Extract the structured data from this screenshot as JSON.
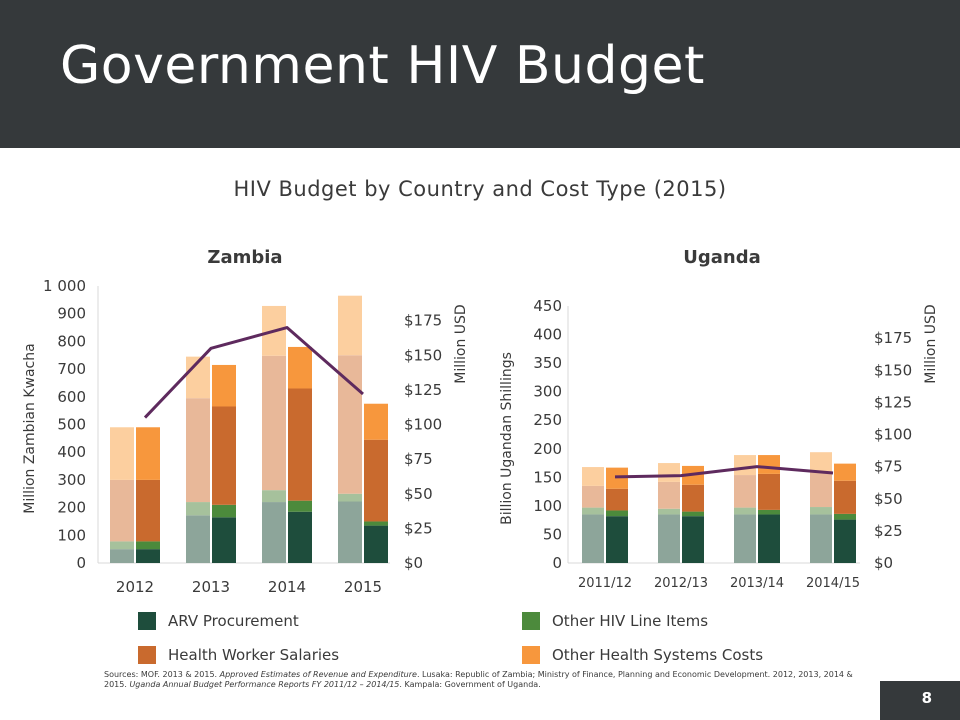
{
  "slide": {
    "title": "Government HIV Budget",
    "subtitle": "HIV Budget by Country and Cost Type (2015)",
    "page_number": "8",
    "sources": {
      "p1": "Sources: MOF. 2013 & 2015. ",
      "p2": "Approved Estimates of Revenue and Expenditure",
      "p3": ". Lusaka: Republic of Zambia; Ministry of Finance, Planning and Economic Development. 2012, 2013, 2014 & 2015. ",
      "p4": "Uganda Annual Budget Performance Reports FY 2011/12 – 2014/15",
      "p5": ". Kampala: Government of Uganda."
    }
  },
  "legend": [
    {
      "label": "ARV Procurement",
      "color": "#1e4d3c"
    },
    {
      "label": "Other HIV Line Items",
      "color": "#4c8a3c"
    },
    {
      "label": "Health Worker Salaries",
      "color": "#c96a2e"
    },
    {
      "label": "Other Health Systems Costs",
      "color": "#f7973d"
    }
  ],
  "chart_data": [
    {
      "type": "bar",
      "title": "Zambia",
      "ylabel": "Million Zambian Kwacha",
      "y2label": "Million USD",
      "categories": [
        "2012",
        "2013",
        "2014",
        "2015"
      ],
      "ylim": [
        0,
        1000
      ],
      "yticks": [
        "0",
        "100",
        "200",
        "300",
        "400",
        "500",
        "600",
        "700",
        "800",
        "900",
        "1 000"
      ],
      "y2lim": [
        0,
        200
      ],
      "y2ticks": [
        "$0",
        "$25",
        "$50",
        "$75",
        "$100",
        "$125",
        "$150",
        "$175"
      ],
      "series": [
        {
          "name": "ARV Procurement",
          "color": "#1e4d3c",
          "light": "#8da59a",
          "values": [
            50,
            165,
            185,
            135
          ],
          "light_values": [
            50,
            172,
            220,
            222
          ]
        },
        {
          "name": "Other HIV Line Items",
          "color": "#4c8a3c",
          "light": "#a6c19c",
          "values": [
            28,
            45,
            40,
            15
          ],
          "light_values": [
            28,
            48,
            43,
            28
          ]
        },
        {
          "name": "Health Worker Salaries",
          "color": "#c96a2e",
          "light": "#e8b899",
          "values": [
            222,
            355,
            405,
            295
          ],
          "light_values": [
            222,
            375,
            485,
            500
          ]
        },
        {
          "name": "Other Health Systems Costs",
          "color": "#f7973d",
          "light": "#fccf9f",
          "values": [
            190,
            150,
            150,
            130
          ],
          "light_values": [
            190,
            150,
            180,
            215
          ]
        }
      ],
      "usd_line": [
        105,
        155,
        170,
        122
      ]
    },
    {
      "type": "bar",
      "title": "Uganda",
      "ylabel": "Billion Ugandan Shillings",
      "y2label": "Million USD",
      "categories": [
        "2011/12",
        "2012/13",
        "2013/14",
        "2014/15"
      ],
      "ylim": [
        0,
        450
      ],
      "yticks": [
        "0",
        "50",
        "100",
        "150",
        "200",
        "250",
        "300",
        "350",
        "400",
        "450"
      ],
      "y2lim": [
        0,
        200
      ],
      "y2ticks": [
        "$0",
        "$25",
        "$50",
        "$75",
        "$100",
        "$125",
        "$150",
        "$175"
      ],
      "series": [
        {
          "name": "ARV Procurement",
          "color": "#1e4d3c",
          "light": "#8da59a",
          "values": [
            82,
            82,
            85,
            76
          ],
          "light_values": [
            85,
            85,
            85,
            85
          ]
        },
        {
          "name": "Other HIV Line Items",
          "color": "#4c8a3c",
          "light": "#a6c19c",
          "values": [
            10,
            8,
            8,
            10
          ],
          "light_values": [
            12,
            10,
            12,
            13
          ]
        },
        {
          "name": "Health Worker Salaries",
          "color": "#c96a2e",
          "light": "#e8b899",
          "values": [
            38,
            47,
            63,
            58
          ],
          "light_values": [
            38,
            47,
            57,
            63
          ]
        },
        {
          "name": "Other Health Systems Costs",
          "color": "#f7973d",
          "light": "#fccf9f",
          "values": [
            37,
            33,
            33,
            30
          ],
          "light_values": [
            33,
            33,
            35,
            33
          ]
        }
      ],
      "usd_line": [
        67,
        68,
        75,
        70
      ]
    }
  ]
}
